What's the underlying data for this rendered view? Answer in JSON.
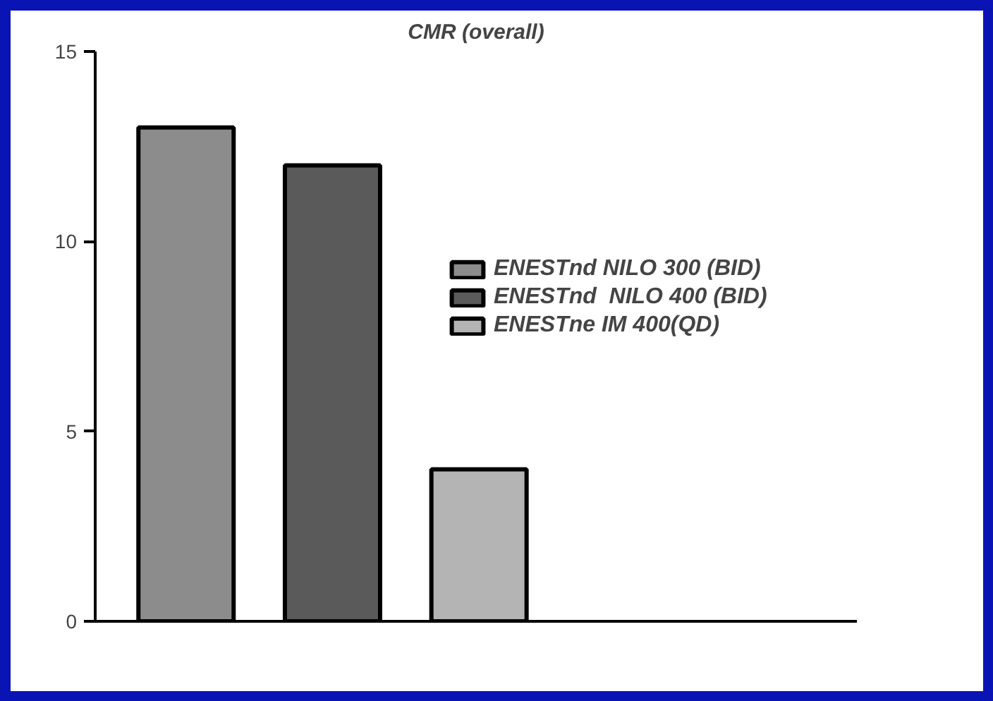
{
  "chart_data": {
    "type": "bar",
    "title": "CMR (overall)",
    "categories": [
      null
    ],
    "series": [
      {
        "name": "ENESTnd NILO 300 (BID)",
        "color": "#8c8c8c",
        "values": [
          13
        ]
      },
      {
        "name": "ENESTnd  NILO 400 (BID)",
        "color": "#5a5a5a",
        "values": [
          12
        ]
      },
      {
        "name": "ENESTne IM 400(QD)",
        "color": "#b4b4b4",
        "values": [
          4
        ]
      }
    ],
    "ylim": [
      0,
      15
    ],
    "yticks": [
      0,
      5,
      10,
      15
    ],
    "grid": false,
    "legend": "right",
    "tick_labels": "y"
  }
}
